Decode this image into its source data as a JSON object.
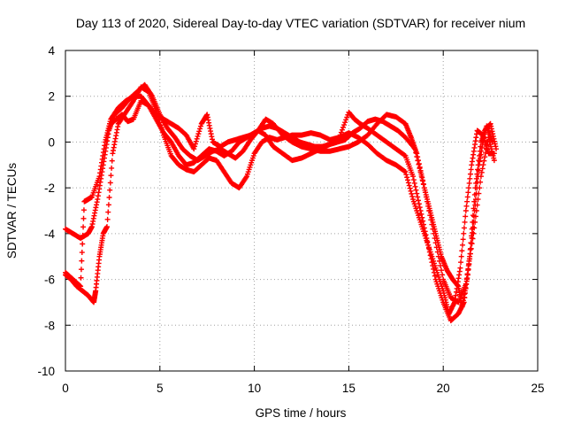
{
  "chart_data": {
    "type": "scatter",
    "title": "Day 113 of 2020, Sidereal Day-to-day VTEC variation (SDTVAR) for receiver nium",
    "xlabel": "GPS time / hours",
    "ylabel": "SDTVAR / TECUs",
    "xlim": [
      0,
      25
    ],
    "ylim": [
      -10,
      4
    ],
    "x_ticks": [
      0,
      5,
      10,
      15,
      20,
      25
    ],
    "y_ticks": [
      -10,
      -8,
      -6,
      -4,
      -2,
      0,
      2,
      4
    ],
    "grid": true,
    "legend": "none",
    "marker": "+",
    "color": "#ff0000",
    "series": [
      {
        "name": "track-1",
        "x": [
          0.0,
          0.4,
          0.8,
          1.2,
          1.4,
          1.7,
          2.0,
          2.3,
          2.6,
          3.0,
          3.4,
          3.8,
          4.2,
          4.6,
          5.0,
          5.4,
          5.8,
          6.2,
          6.6,
          7.0,
          7.4,
          7.8,
          8.2,
          8.6,
          9.0,
          9.4,
          9.8,
          10.2,
          10.6,
          11.0,
          11.5,
          12.0,
          12.5,
          13.0,
          13.5,
          14.0,
          14.5,
          15.0,
          15.5,
          16.0,
          16.5,
          17.0,
          17.5,
          18.0,
          18.4,
          18.8,
          19.2,
          19.6,
          20.0,
          20.3,
          20.6,
          20.9,
          21.2,
          21.5,
          21.8,
          22.1,
          22.4,
          22.7
        ],
        "y": [
          -3.8,
          -4.0,
          -4.2,
          -4.0,
          -3.7,
          -2.5,
          -1.0,
          0.5,
          1.2,
          1.5,
          1.9,
          2.2,
          2.5,
          2.0,
          1.2,
          0.6,
          0.2,
          -0.3,
          -0.6,
          -0.8,
          -0.6,
          -0.4,
          -0.3,
          -0.5,
          -0.7,
          -0.4,
          0.1,
          0.5,
          0.3,
          -0.2,
          -0.5,
          -0.8,
          -0.7,
          -0.5,
          -0.3,
          -0.1,
          0.2,
          0.4,
          0.2,
          -0.1,
          -0.5,
          -0.8,
          -1.0,
          -1.3,
          -2.5,
          -3.5,
          -4.5,
          -5.5,
          -6.5,
          -7.5,
          -7.0,
          -5.5,
          -3.0,
          -1.0,
          0.5,
          0.3,
          -0.5,
          -0.5
        ]
      },
      {
        "name": "track-2",
        "x": [
          0.0,
          0.3,
          0.6,
          0.9,
          1.2,
          1.5,
          1.6,
          1.8,
          2.0,
          2.2,
          2.5,
          2.8,
          3.2,
          3.6,
          4.0,
          4.4,
          4.8,
          5.2,
          5.6,
          6.0,
          6.4,
          6.8,
          7.2,
          7.6,
          8.0,
          8.4,
          8.8,
          9.2,
          9.6,
          10.0,
          10.4,
          10.8,
          11.2,
          11.6,
          12.0,
          12.5,
          13.0,
          13.5,
          14.0,
          14.5,
          15.0,
          15.3,
          15.6,
          16.0,
          16.5,
          17.0,
          17.5,
          18.0,
          18.4,
          18.8,
          19.2,
          19.6,
          20.0,
          20.4,
          20.8,
          21.1,
          21.4,
          21.7,
          22.0,
          22.3,
          22.6
        ],
        "y": [
          -5.8,
          -6.0,
          -6.3,
          -6.5,
          -6.7,
          -7.0,
          -6.5,
          -5.0,
          -4.0,
          -3.7,
          -0.5,
          0.8,
          1.3,
          1.8,
          2.4,
          2.2,
          1.4,
          0.3,
          -0.6,
          -1.0,
          -1.2,
          -1.3,
          -1.0,
          -0.7,
          -0.8,
          -1.3,
          -1.8,
          -2.0,
          -1.5,
          -0.5,
          0.0,
          0.2,
          0.1,
          0.2,
          0.3,
          0.3,
          0.4,
          0.3,
          0.1,
          0.2,
          1.3,
          1.0,
          0.8,
          0.6,
          0.3,
          0.0,
          -0.3,
          -0.6,
          -1.5,
          -3.0,
          -4.5,
          -6.0,
          -7.0,
          -7.8,
          -7.5,
          -7.0,
          -5.0,
          -2.0,
          0.0,
          0.7,
          0.0
        ]
      },
      {
        "name": "track-3",
        "x": [
          0.0,
          0.4,
          0.8,
          1.0,
          1.2,
          1.4,
          1.8,
          2.1,
          2.4,
          2.8,
          3.2,
          3.6,
          4.0,
          4.4,
          4.8,
          5.2,
          5.6,
          6.0,
          6.4,
          6.8,
          7.2,
          7.5,
          7.8,
          8.2,
          8.6,
          9.0,
          9.4,
          9.8,
          10.2,
          10.6,
          11.0,
          11.5,
          12.0,
          12.5,
          13.0,
          13.5,
          14.0,
          14.5,
          15.0,
          15.5,
          16.0,
          16.5,
          17.0,
          17.5,
          18.0,
          18.3,
          18.6,
          19.0,
          19.3,
          19.6,
          19.9,
          20.2,
          20.5,
          20.8,
          21.0,
          21.3,
          21.6,
          21.9,
          22.2,
          22.5,
          22.8
        ],
        "y": [
          -5.7,
          -6.0,
          -6.3,
          -2.6,
          -2.5,
          -2.4,
          -1.5,
          0.0,
          1.0,
          1.5,
          1.8,
          2.0,
          2.0,
          1.6,
          1.2,
          1.0,
          0.8,
          0.6,
          0.3,
          -0.3,
          0.8,
          1.2,
          0.0,
          -0.2,
          0.0,
          0.1,
          0.2,
          0.3,
          0.5,
          1.0,
          0.8,
          0.3,
          0.0,
          -0.2,
          -0.3,
          -0.4,
          -0.4,
          -0.3,
          -0.2,
          0.0,
          0.3,
          0.8,
          1.2,
          1.1,
          0.8,
          0.2,
          -0.5,
          -2.0,
          -3.0,
          -4.0,
          -5.0,
          -5.6,
          -6.0,
          -6.3,
          -7.2,
          -5.8,
          -3.5,
          -1.0,
          0.5,
          0.8,
          -0.3
        ]
      },
      {
        "name": "track-4",
        "x": [
          2.4,
          2.7,
          3.0,
          3.3,
          3.6,
          4.0,
          4.4,
          4.8,
          5.2,
          5.6,
          6.0,
          6.4,
          6.8,
          7.2,
          7.6,
          8.0,
          8.4,
          8.8,
          9.2,
          9.6,
          10.0,
          10.4,
          10.8,
          11.2,
          11.6,
          12.0,
          12.4,
          12.8,
          13.2,
          13.6,
          14.0,
          14.4,
          14.8,
          15.2,
          15.6,
          16.0,
          16.4,
          16.8,
          17.2,
          17.6,
          18.0,
          18.5,
          19.0,
          19.5,
          20.0,
          20.4,
          20.8,
          21.2,
          21.6,
          22.0,
          22.4,
          22.7
        ],
        "y": [
          0.8,
          1.0,
          1.2,
          0.9,
          1.0,
          1.8,
          1.6,
          1.0,
          0.4,
          0.0,
          -0.6,
          -1.0,
          -0.9,
          -0.6,
          -0.3,
          -0.4,
          -0.6,
          -0.4,
          0.0,
          0.2,
          0.4,
          0.6,
          0.7,
          0.6,
          0.4,
          0.2,
          0.0,
          -0.1,
          -0.2,
          -0.2,
          -0.1,
          0.0,
          0.1,
          0.4,
          0.6,
          0.9,
          1.0,
          0.9,
          0.7,
          0.5,
          0.2,
          -0.3,
          -2.0,
          -4.0,
          -6.0,
          -6.8,
          -7.0,
          -6.2,
          -4.0,
          -1.5,
          0.2,
          -0.8
        ]
      }
    ]
  }
}
